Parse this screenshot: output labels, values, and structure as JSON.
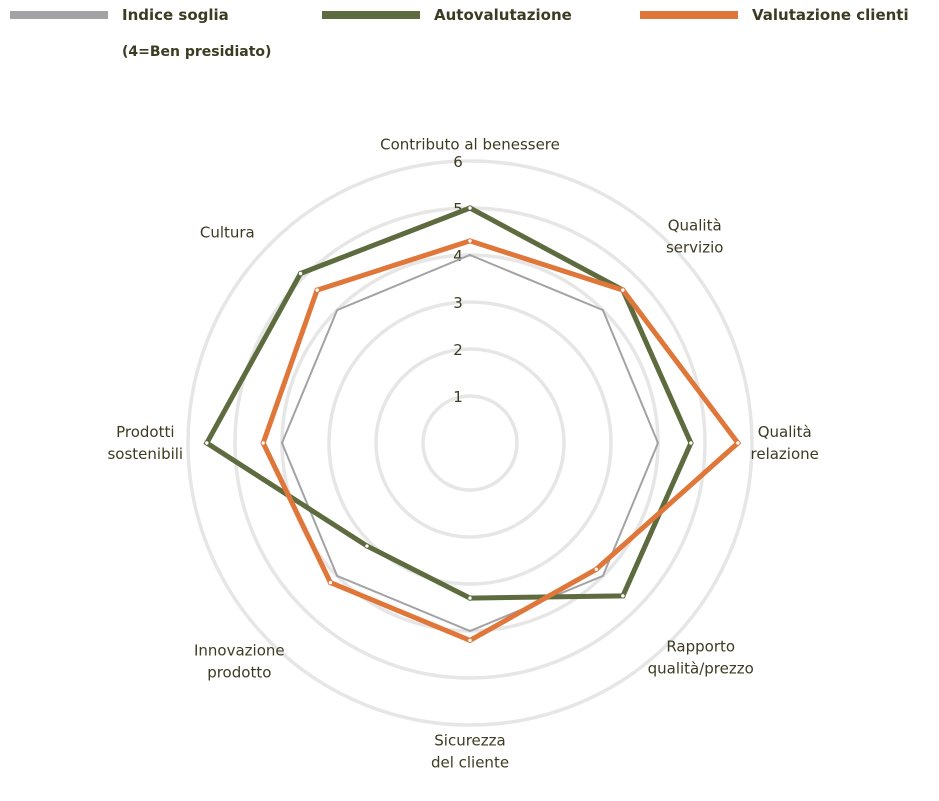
{
  "chart_data": {
    "type": "radar",
    "categories": [
      [
        "Contributo al benessere"
      ],
      [
        "Qualità",
        "servizio"
      ],
      [
        "Qualità",
        "relazione"
      ],
      [
        "Rapporto",
        "qualità/prezzo"
      ],
      [
        "Sicurezza",
        "del cliente"
      ],
      [
        "Innovazione",
        "prodotto"
      ],
      [
        "Prodotti",
        "sostenibili"
      ],
      [
        "Cultura"
      ]
    ],
    "rmax": 6,
    "ticks": [
      1,
      2,
      3,
      4,
      5,
      6
    ],
    "grid": true,
    "legend_position": "top",
    "series": [
      {
        "name": "Indice soglia",
        "note": "(4=Ben presidiato)",
        "color": "#a3a3a6",
        "values": [
          4,
          4,
          4,
          4,
          4,
          4,
          4,
          4
        ]
      },
      {
        "name": "Autovalutazione",
        "color": "#5d6b3f",
        "values": [
          5.0,
          4.6,
          4.7,
          4.6,
          3.3,
          3.1,
          5.6,
          5.1
        ]
      },
      {
        "name": "Valutazione clienti",
        "color": "#e0773a",
        "values": [
          4.3,
          4.6,
          5.7,
          3.8,
          4.2,
          4.2,
          4.4,
          4.6
        ]
      }
    ]
  }
}
